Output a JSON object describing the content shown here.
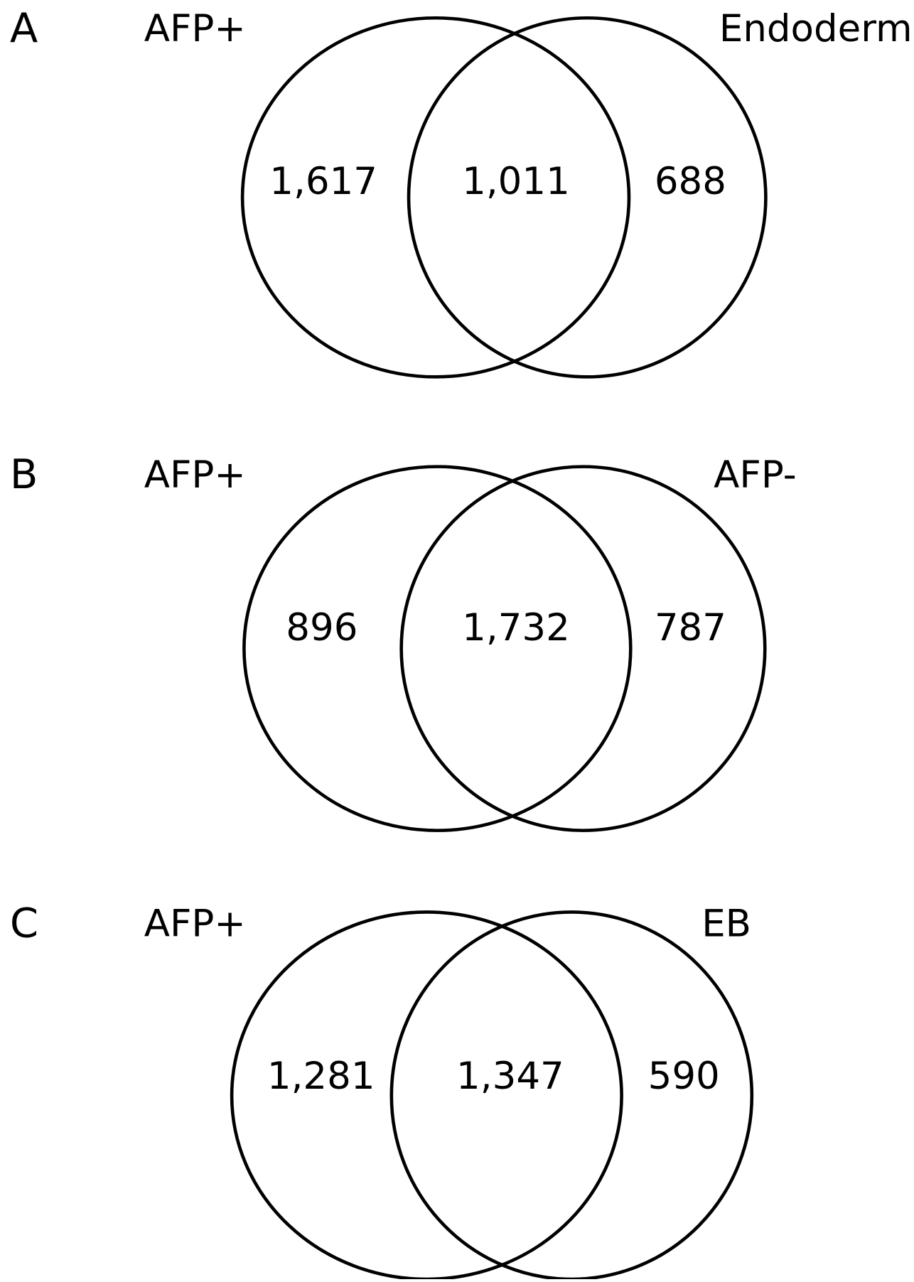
{
  "chart_data": [
    {
      "type": "venn",
      "panel": "A",
      "sets": [
        "AFP+",
        "Endoderm"
      ],
      "values": [
        1617,
        1011,
        688
      ],
      "value_labels": [
        "1,617",
        "1,011",
        "688"
      ]
    },
    {
      "type": "venn",
      "panel": "B",
      "sets": [
        "AFP+",
        "AFP-"
      ],
      "values": [
        896,
        1732,
        787
      ],
      "value_labels": [
        "896",
        "1,732",
        "787"
      ]
    },
    {
      "type": "venn",
      "panel": "C",
      "sets": [
        "AFP+",
        "EB"
      ],
      "values": [
        1281,
        1347,
        590
      ],
      "value_labels": [
        "1,281",
        "1,347",
        "590"
      ]
    }
  ]
}
